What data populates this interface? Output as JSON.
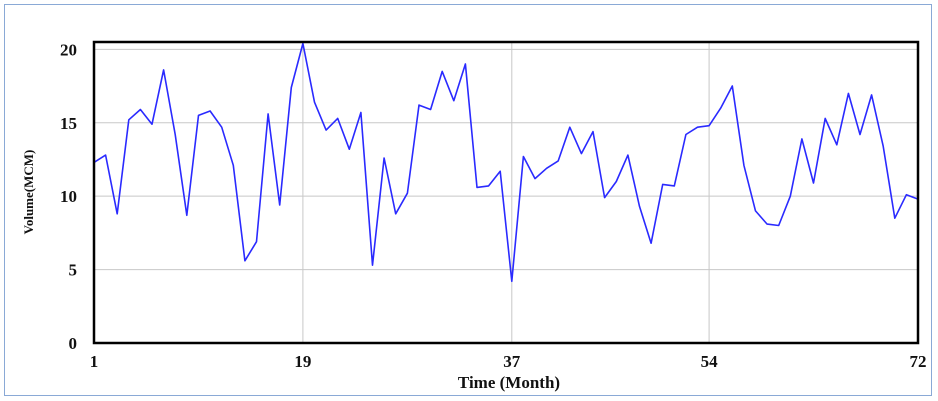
{
  "chart_data": {
    "type": "line",
    "title": "",
    "xlabel": "Time (Month)",
    "ylabel": "Volume(MCM)",
    "xlim": [
      1,
      72
    ],
    "ylim": [
      0,
      20.5
    ],
    "x_ticks": [
      1,
      19,
      37,
      54,
      72
    ],
    "y_ticks": [
      0,
      5,
      10,
      15,
      20
    ],
    "grid": true,
    "line_color": "#2a2aff",
    "series": [
      {
        "x": [
          1,
          2,
          3,
          4,
          5,
          6,
          7,
          8,
          9,
          10,
          11,
          12,
          13,
          14,
          15,
          16,
          17,
          18,
          19,
          20,
          21,
          22,
          23,
          24,
          25,
          26,
          27,
          28,
          29,
          30,
          31,
          32,
          33,
          34,
          35,
          36,
          37,
          38,
          39,
          40,
          41,
          42,
          43,
          44,
          45,
          46,
          47,
          48,
          49,
          50,
          51,
          52,
          53,
          54,
          55,
          56,
          57,
          58,
          59,
          60,
          61,
          62,
          63,
          64,
          65,
          66,
          67,
          68,
          69,
          70,
          71,
          72
        ],
        "values": [
          12.3,
          12.8,
          8.8,
          15.2,
          15.9,
          14.9,
          18.6,
          14.2,
          8.7,
          15.5,
          15.8,
          14.7,
          12.1,
          5.6,
          6.9,
          15.6,
          9.4,
          17.4,
          20.4,
          16.4,
          14.5,
          15.3,
          13.2,
          15.7,
          5.3,
          12.6,
          8.8,
          10.2,
          16.2,
          15.9,
          18.5,
          16.5,
          19.0,
          10.6,
          10.7,
          11.7,
          4.2,
          12.7,
          11.2,
          11.9,
          12.4,
          14.7,
          12.9,
          14.4,
          9.9,
          11.0,
          12.8,
          9.3,
          6.8,
          10.8,
          10.7,
          14.2,
          14.7,
          14.8,
          16.0,
          17.5,
          12.1,
          9.0,
          8.1,
          8.0,
          10.0,
          13.9,
          10.9,
          15.3,
          13.5,
          17.0,
          14.2,
          16.9,
          13.4,
          8.5,
          10.1,
          9.8
        ]
      }
    ]
  }
}
